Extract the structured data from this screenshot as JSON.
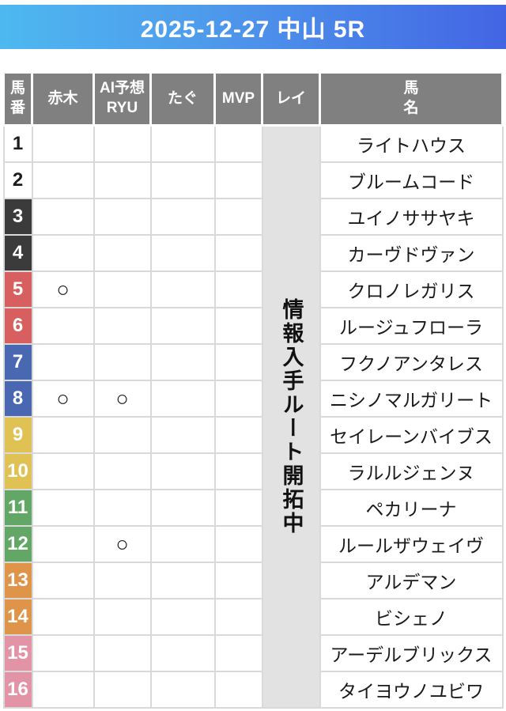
{
  "header": {
    "title": "2025-12-27 中山 5R"
  },
  "colors": {
    "title_gradient_left": "#4db8f0",
    "title_gradient_right": "#4365e4",
    "header_cell": "#808080",
    "grid_line": "#d9d9d9",
    "rei_column_bg": "#e2e2e2",
    "waku_black": "#3b3b3b",
    "waku_red": "#d75f5f",
    "waku_blue": "#4a68b1",
    "waku_yellow": "#dfc154",
    "waku_green": "#62a766",
    "waku_orange": "#de9549",
    "waku_pink": "#e294a6"
  },
  "table": {
    "columns": [
      {
        "key": "num",
        "label": "馬\n番"
      },
      {
        "key": "akagi",
        "label": "赤木"
      },
      {
        "key": "ai",
        "label": "AI予想\nRYU"
      },
      {
        "key": "tagu",
        "label": "たぐ"
      },
      {
        "key": "mvp",
        "label": "MVP"
      },
      {
        "key": "rei",
        "label": "レイ"
      },
      {
        "key": "name",
        "label": "馬\n名"
      }
    ],
    "mark_symbol": "○",
    "rei_notice": "情報入手ルート開拓中",
    "rows": [
      {
        "num": "1",
        "waku": "white",
        "akagi": "",
        "ai": "",
        "tagu": "",
        "mvp": "",
        "name": "ライトハウス"
      },
      {
        "num": "2",
        "waku": "white",
        "akagi": "",
        "ai": "",
        "tagu": "",
        "mvp": "",
        "name": "ブルームコード"
      },
      {
        "num": "3",
        "waku": "black",
        "akagi": "",
        "ai": "",
        "tagu": "",
        "mvp": "",
        "name": "ユイノササヤキ"
      },
      {
        "num": "4",
        "waku": "black",
        "akagi": "",
        "ai": "",
        "tagu": "",
        "mvp": "",
        "name": "カーヴドヴァン"
      },
      {
        "num": "5",
        "waku": "red",
        "akagi": "○",
        "ai": "",
        "tagu": "",
        "mvp": "",
        "name": "クロノレガリス"
      },
      {
        "num": "6",
        "waku": "red",
        "akagi": "",
        "ai": "",
        "tagu": "",
        "mvp": "",
        "name": "ルージュフローラ"
      },
      {
        "num": "7",
        "waku": "blue",
        "akagi": "",
        "ai": "",
        "tagu": "",
        "mvp": "",
        "name": "フクノアンタレス"
      },
      {
        "num": "8",
        "waku": "blue",
        "akagi": "○",
        "ai": "○",
        "tagu": "",
        "mvp": "",
        "name": "ニシノマルガリート"
      },
      {
        "num": "9",
        "waku": "yellow",
        "akagi": "",
        "ai": "",
        "tagu": "",
        "mvp": "",
        "name": "セイレーンバイブス"
      },
      {
        "num": "10",
        "waku": "yellow",
        "akagi": "",
        "ai": "",
        "tagu": "",
        "mvp": "",
        "name": "ラルルジェンヌ"
      },
      {
        "num": "11",
        "waku": "green",
        "akagi": "",
        "ai": "",
        "tagu": "",
        "mvp": "",
        "name": "ペカリーナ"
      },
      {
        "num": "12",
        "waku": "green",
        "akagi": "",
        "ai": "○",
        "tagu": "",
        "mvp": "",
        "name": "ルールザウェイヴ"
      },
      {
        "num": "13",
        "waku": "orange",
        "akagi": "",
        "ai": "",
        "tagu": "",
        "mvp": "",
        "name": "アルデマン"
      },
      {
        "num": "14",
        "waku": "orange",
        "akagi": "",
        "ai": "",
        "tagu": "",
        "mvp": "",
        "name": "ビシェノ"
      },
      {
        "num": "15",
        "waku": "pink",
        "akagi": "",
        "ai": "",
        "tagu": "",
        "mvp": "",
        "name": "アーデルブリックス"
      },
      {
        "num": "16",
        "waku": "pink",
        "akagi": "",
        "ai": "",
        "tagu": "",
        "mvp": "",
        "name": "タイヨウノユビワ"
      }
    ]
  }
}
